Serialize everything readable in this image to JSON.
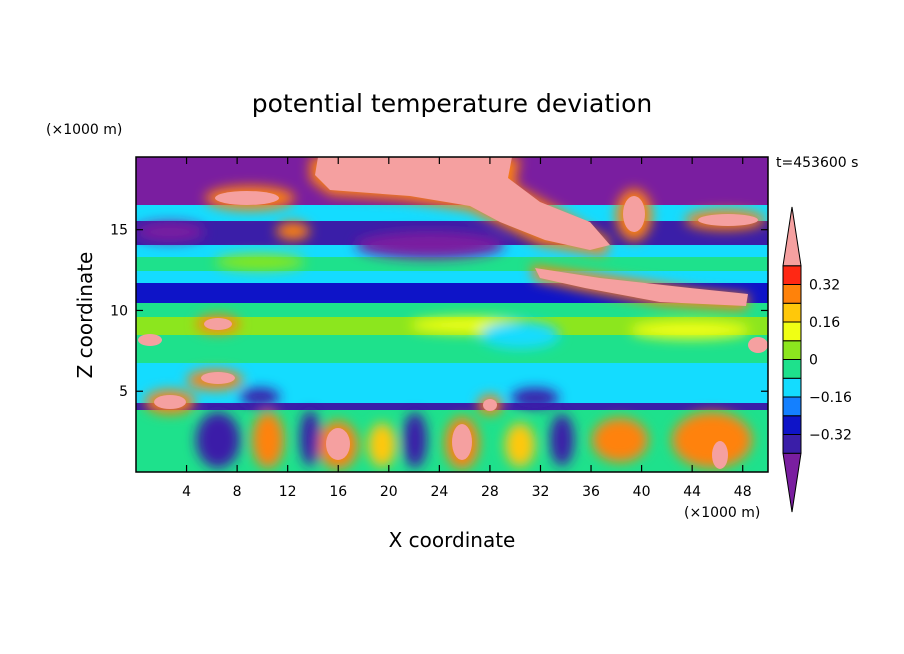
{
  "chart_data": {
    "type": "heatmap",
    "title": "potential temperature deviation",
    "xlabel": "X coordinate",
    "ylabel": "Z coordinate",
    "x_unit": "(×1000 m)",
    "y_unit": "(×1000 m)",
    "time_label": "t=453600 s",
    "xlim": [
      0,
      50
    ],
    "ylim": [
      0,
      19.5
    ],
    "x_ticks": [
      4,
      8,
      12,
      16,
      20,
      24,
      28,
      32,
      36,
      40,
      44,
      48
    ],
    "y_ticks": [
      5,
      10,
      15
    ],
    "colorbar": {
      "levels": [
        -0.48,
        -0.4,
        -0.32,
        -0.24,
        -0.16,
        -0.08,
        0,
        0.08,
        0.16,
        0.24,
        0.32,
        0.4
      ],
      "tick_values": [
        0.32,
        0.16,
        0,
        -0.16,
        -0.32
      ],
      "tick_labels": [
        "0.32",
        "0.16",
        "0",
        "−0.16",
        "−0.32"
      ],
      "colors": [
        "#7a1ea0",
        "#3a1ea8",
        "#0e14c8",
        "#1480ff",
        "#14dcff",
        "#1ee18c",
        "#8ce61e",
        "#f0ff14",
        "#ffc80a",
        "#ff820a",
        "#ff2814",
        "#f5a0a0"
      ],
      "extend": "both"
    },
    "grid": false
  }
}
